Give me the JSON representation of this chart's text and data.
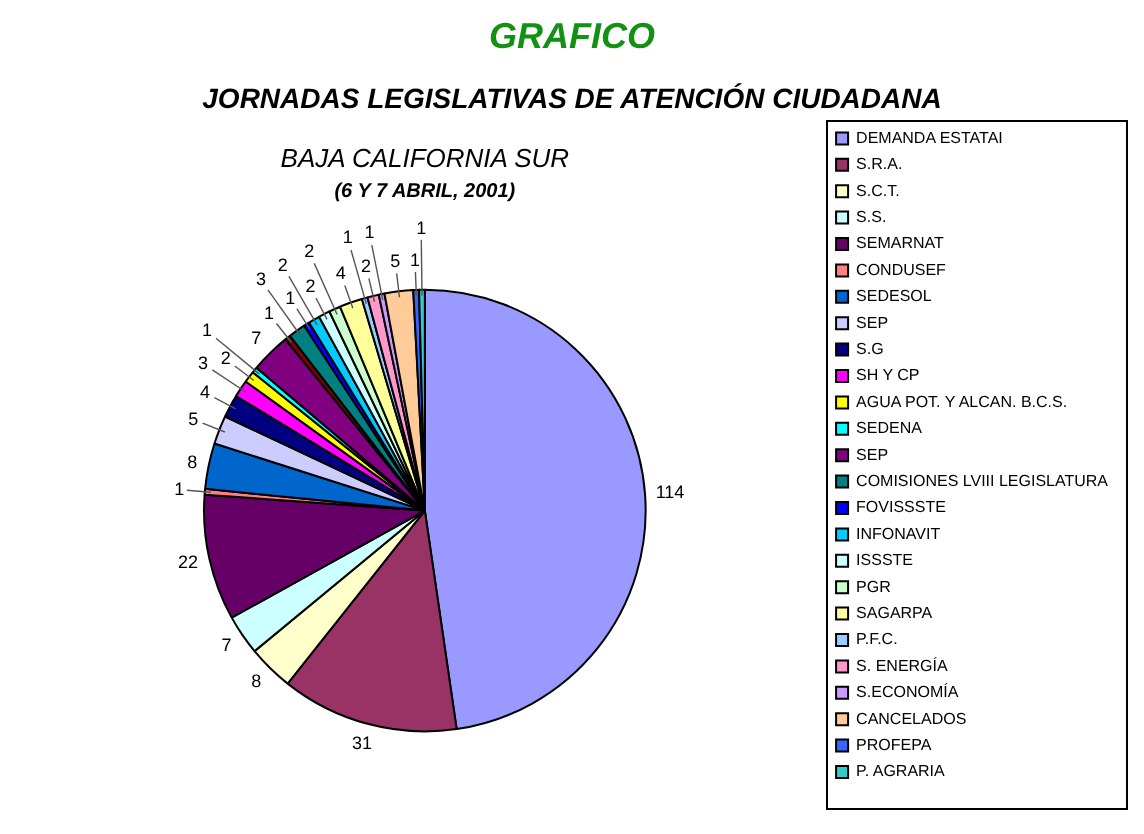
{
  "chart_data": {
    "type": "pie",
    "title": "GRAFICO",
    "subtitle": "JORNADAS LEGISLATIVAS DE ATENCIÓN CIUDADANA",
    "annotations": [
      "BAJA CALIFORNIA SUR",
      "(6 Y 7 ABRIL, 2001)"
    ],
    "categories": [
      "DEMANDA ESTATAI",
      "S.R.A.",
      "S.C.T.",
      "S.S.",
      "SEMARNAT",
      "CONDUSEF",
      "SEDESOL",
      "SEP",
      "S.G",
      "SH Y CP",
      "AGUA POT. Y ALCAN. B.C.S.",
      "SEDENA",
      "SEP",
      null,
      "COMISIONES LVIII LEGISLATURA",
      "FOVISSSTE",
      "INFONAVIT",
      "ISSSTE",
      "PGR",
      "SAGARPA",
      "P.F.C.",
      "S. ENERGÍA",
      "S.ECONOMÍA",
      "CANCELADOS",
      "PROFEPA",
      "P. AGRARIA"
    ],
    "values": [
      114,
      31,
      8,
      7,
      22,
      1,
      8,
      5,
      4,
      3,
      2,
      1,
      7,
      1,
      3,
      1,
      2,
      2,
      2,
      4,
      1,
      2,
      1,
      5,
      1,
      1
    ],
    "colors": [
      "#9999ff",
      "#993366",
      "#ffffcc",
      "#ccffff",
      "#660066",
      "#ff8080",
      "#0066cc",
      "#ccccff",
      "#000080",
      "#ff00ff",
      "#ffff00",
      "#00ffff",
      "#800080",
      "#800000",
      "#008080",
      "#0000ff",
      "#00ccff",
      "#ccffff",
      "#ccffcc",
      "#ffff99",
      "#99ccff",
      "#ff99cc",
      "#cc99ff",
      "#ffcc99",
      "#3366ff",
      "#33cccc"
    ],
    "data_labels": true,
    "legend": "right"
  }
}
